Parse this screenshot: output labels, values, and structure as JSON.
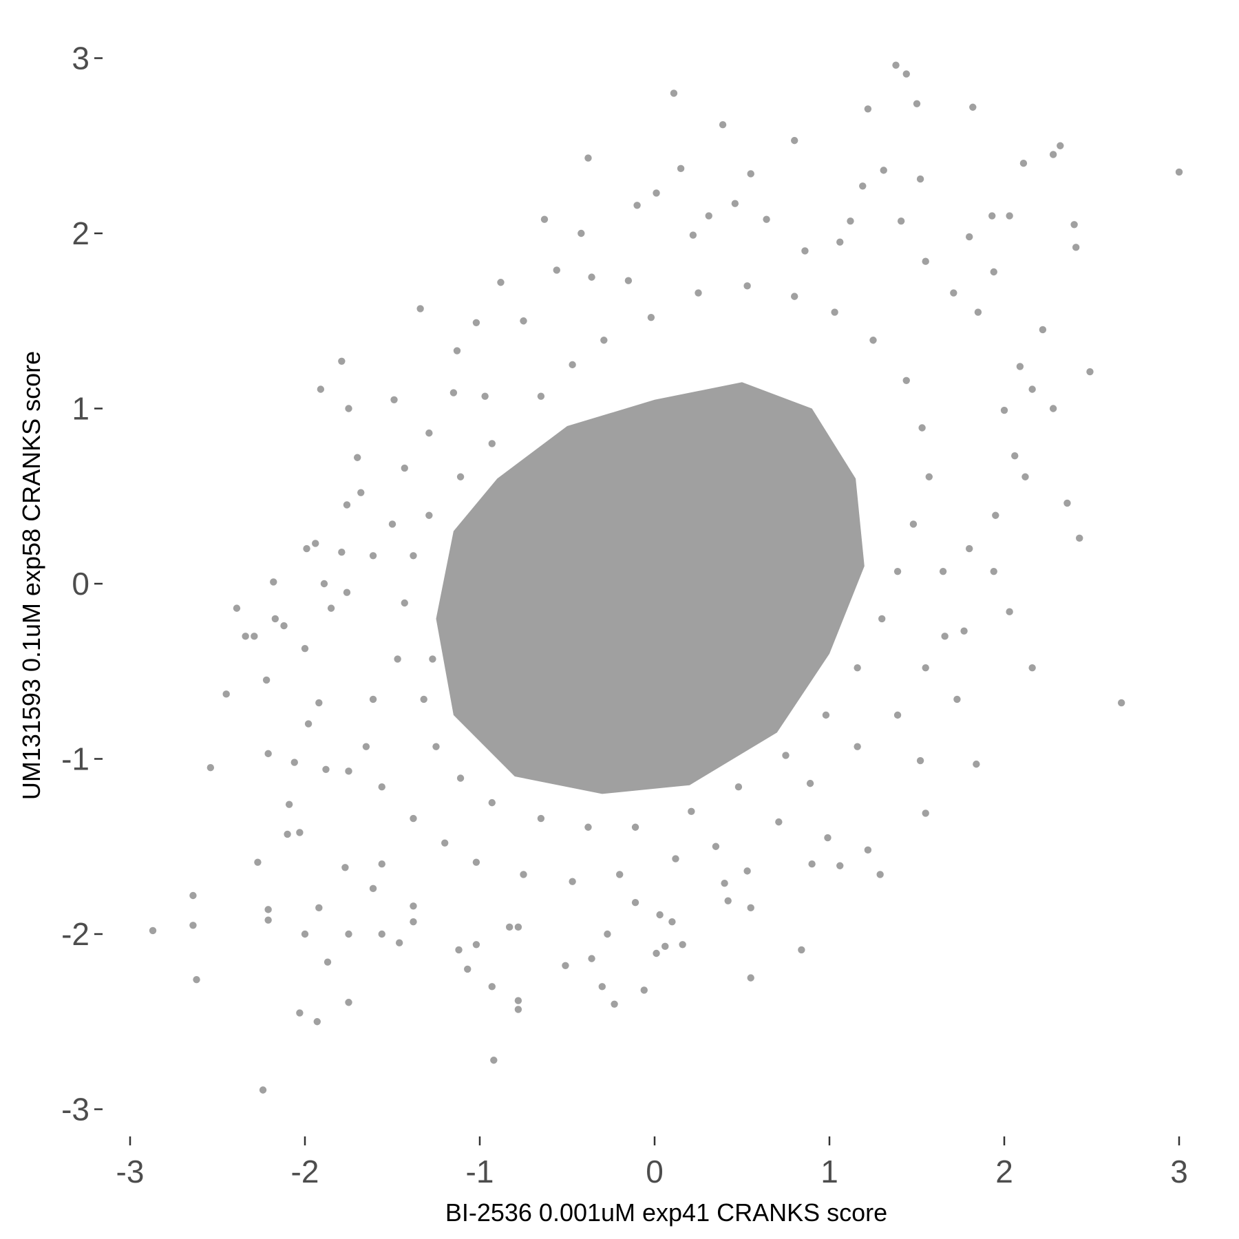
{
  "chart_data": {
    "type": "scatter",
    "title": "",
    "xlabel": "BI-2536 0.001uM exp41 CRANKS score",
    "ylabel": "UM131593 0.1uM exp58 CRANKS score",
    "xlim": [
      -3.05,
      3.05
    ],
    "ylim": [
      -3.1,
      3.1
    ],
    "x_ticks": [
      "-3",
      "-2",
      "-1",
      "0",
      "1",
      "2",
      "3"
    ],
    "y_ticks": [
      "3",
      "2",
      "1",
      "0",
      "-1",
      "-2",
      "-3"
    ],
    "x_tick_values": [
      -3,
      -2,
      -1,
      0,
      1,
      2,
      3
    ],
    "y_tick_values": [
      3,
      2,
      1,
      0,
      -1,
      -2,
      -3
    ],
    "grid": false,
    "legend": "none",
    "point_color": "#a0a0a0",
    "dense_region_outline": [
      [
        -1.25,
        -0.2
      ],
      [
        -1.15,
        0.3
      ],
      [
        -0.9,
        0.6
      ],
      [
        -0.5,
        0.9
      ],
      [
        0,
        1.05
      ],
      [
        0.5,
        1.15
      ],
      [
        0.9,
        1.0
      ],
      [
        1.15,
        0.6
      ],
      [
        1.2,
        0.1
      ],
      [
        1.0,
        -0.4
      ],
      [
        0.7,
        -0.85
      ],
      [
        0.2,
        -1.15
      ],
      [
        -0.3,
        -1.2
      ],
      [
        -0.8,
        -1.1
      ],
      [
        -1.15,
        -0.75
      ]
    ],
    "points": [
      [
        -2.87,
        -1.98
      ],
      [
        -2.64,
        -1.78
      ],
      [
        -2.64,
        -1.95
      ],
      [
        -2.62,
        -2.26
      ],
      [
        -2.54,
        -1.05
      ],
      [
        -2.45,
        -0.63
      ],
      [
        -2.39,
        -0.14
      ],
      [
        -2.34,
        -0.3
      ],
      [
        -2.29,
        -0.3
      ],
      [
        -2.27,
        -1.59
      ],
      [
        -2.24,
        -2.89
      ],
      [
        -2.22,
        -0.55
      ],
      [
        -2.21,
        -0.97
      ],
      [
        -2.21,
        -1.86
      ],
      [
        -2.21,
        -1.92
      ],
      [
        -2.18,
        0.01
      ],
      [
        -2.17,
        -0.2
      ],
      [
        -2.12,
        -0.24
      ],
      [
        -2.1,
        -1.43
      ],
      [
        -2.09,
        -1.26
      ],
      [
        -2.06,
        -1.02
      ],
      [
        -2.03,
        -2.45
      ],
      [
        -2.03,
        -1.42
      ],
      [
        -2.0,
        -2.0
      ],
      [
        -1.99,
        0.2
      ],
      [
        -1.94,
        0.23
      ],
      [
        -1.93,
        -2.5
      ],
      [
        -1.91,
        1.11
      ],
      [
        -1.89,
        0
      ],
      [
        -1.87,
        -2.16
      ],
      [
        -1.79,
        1.27
      ],
      [
        -1.79,
        0.18
      ],
      [
        -1.75,
        -2.39
      ],
      [
        -1.75,
        1.0
      ],
      [
        -1.75,
        -2.0
      ],
      [
        -1.7,
        0.72
      ],
      [
        -1.56,
        -1.6
      ],
      [
        -1.56,
        -2.0
      ],
      [
        -1.46,
        -2.05
      ],
      [
        -1.49,
        1.05
      ],
      [
        -1.34,
        1.57
      ],
      [
        -1.13,
        1.33
      ],
      [
        -1.02,
        1.49
      ],
      [
        -1.12,
        -2.09
      ],
      [
        -1.07,
        -2.2
      ],
      [
        -0.93,
        -2.3
      ],
      [
        -0.92,
        -2.72
      ],
      [
        -0.78,
        -2.38
      ],
      [
        -0.78,
        -2.43
      ],
      [
        -0.88,
        1.72
      ],
      [
        -0.63,
        2.08
      ],
      [
        -0.42,
        2.0
      ],
      [
        -0.38,
        2.43
      ],
      [
        -0.51,
        -2.18
      ],
      [
        -0.36,
        -2.14
      ],
      [
        -0.3,
        -2.3
      ],
      [
        -0.23,
        -2.4
      ],
      [
        -0.06,
        -2.32
      ],
      [
        0.01,
        -2.11
      ],
      [
        0.06,
        -2.07
      ],
      [
        0.16,
        -2.06
      ],
      [
        0.55,
        -2.25
      ],
      [
        0.84,
        -2.09
      ],
      [
        0.11,
        2.8
      ],
      [
        0.15,
        2.37
      ],
      [
        0.39,
        2.62
      ],
      [
        0.55,
        2.34
      ],
      [
        0.8,
        2.53
      ],
      [
        1.22,
        2.71
      ],
      [
        1.38,
        2.96
      ],
      [
        1.44,
        2.91
      ],
      [
        1.5,
        2.74
      ],
      [
        1.82,
        2.72
      ],
      [
        1.31,
        2.36
      ],
      [
        1.52,
        2.31
      ],
      [
        2.11,
        2.4
      ],
      [
        2.32,
        2.5
      ],
      [
        2.28,
        2.45
      ],
      [
        3.0,
        2.35
      ],
      [
        2.49,
        1.21
      ],
      [
        2.43,
        0.26
      ],
      [
        2.16,
        -0.48
      ],
      [
        2.67,
        -0.68
      ],
      [
        1.84,
        -1.03
      ],
      [
        1.55,
        -1.31
      ],
      [
        1.29,
        -1.66
      ],
      [
        1.22,
        -1.52
      ],
      [
        1.52,
        -1.01
      ],
      [
        2.4,
        2.05
      ],
      [
        2.41,
        1.92
      ],
      [
        2.03,
        2.1
      ],
      [
        1.93,
        2.1
      ],
      [
        2.22,
        1.45
      ],
      [
        2.28,
        1.0
      ],
      [
        2.36,
        0.46
      ],
      [
        2.06,
        0.73
      ],
      [
        1.94,
        0.07
      ],
      [
        2.03,
        -0.16
      ],
      [
        1.77,
        -0.27
      ],
      [
        1.73,
        -0.66
      ],
      [
        0.99,
        -1.45
      ],
      [
        1.06,
        -1.61
      ],
      [
        0.9,
        -1.6
      ],
      [
        0.53,
        -1.64
      ],
      [
        0.4,
        -1.71
      ],
      [
        0.42,
        -1.81
      ],
      [
        0.55,
        -1.85
      ],
      [
        0.03,
        -1.89
      ],
      [
        0.1,
        -1.93
      ],
      [
        -0.11,
        -1.82
      ],
      [
        -0.27,
        -2.0
      ],
      [
        -0.83,
        -1.96
      ],
      [
        -0.78,
        -1.96
      ],
      [
        -1.02,
        -2.06
      ],
      [
        -1.38,
        -1.84
      ],
      [
        -1.38,
        -1.93
      ],
      [
        -1.61,
        -1.74
      ],
      [
        -1.77,
        -1.62
      ],
      [
        -1.92,
        -1.85
      ],
      [
        -1.75,
        -1.07
      ],
      [
        -1.88,
        -1.06
      ],
      [
        -2.0,
        -0.37
      ],
      [
        -1.98,
        -0.8
      ],
      [
        -1.92,
        -0.68
      ],
      [
        -1.85,
        -0.14
      ],
      [
        -1.76,
        -0.05
      ],
      [
        -1.76,
        0.45
      ],
      [
        -1.68,
        0.52
      ],
      [
        -1.61,
        0.16
      ],
      [
        -1.5,
        0.34
      ],
      [
        -1.43,
        0.66
      ],
      [
        -1.29,
        0.86
      ],
      [
        -1.15,
        1.09
      ],
      [
        -0.97,
        1.07
      ],
      [
        -0.75,
        1.5
      ],
      [
        -0.56,
        1.79
      ],
      [
        -0.36,
        1.75
      ],
      [
        -0.15,
        1.73
      ],
      [
        -0.1,
        2.16
      ],
      [
        0.01,
        2.23
      ],
      [
        0.22,
        1.99
      ],
      [
        0.31,
        2.1
      ],
      [
        0.46,
        2.17
      ],
      [
        0.64,
        2.08
      ],
      [
        0.86,
        1.9
      ],
      [
        1.06,
        1.95
      ],
      [
        1.12,
        2.07
      ],
      [
        1.19,
        2.27
      ],
      [
        1.41,
        2.07
      ],
      [
        1.55,
        1.84
      ],
      [
        1.8,
        1.98
      ],
      [
        1.94,
        1.78
      ],
      [
        1.71,
        1.66
      ],
      [
        1.85,
        1.55
      ],
      [
        2.09,
        1.24
      ],
      [
        2.0,
        0.99
      ],
      [
        2.16,
        1.11
      ],
      [
        2.12,
        0.61
      ],
      [
        1.95,
        0.39
      ],
      [
        1.8,
        0.2
      ],
      [
        1.65,
        0.07
      ],
      [
        1.66,
        -0.3
      ],
      [
        1.55,
        -0.48
      ],
      [
        1.39,
        -0.75
      ],
      [
        1.16,
        -0.93
      ],
      [
        0.89,
        -1.14
      ],
      [
        0.71,
        -1.36
      ],
      [
        0.35,
        -1.5
      ],
      [
        0.12,
        -1.57
      ],
      [
        -0.2,
        -1.66
      ],
      [
        -0.47,
        -1.7
      ],
      [
        -0.75,
        -1.66
      ],
      [
        -1.02,
        -1.59
      ],
      [
        -1.2,
        -1.48
      ],
      [
        -1.38,
        -1.34
      ],
      [
        -1.56,
        -1.16
      ],
      [
        -1.65,
        -0.93
      ],
      [
        -1.61,
        -0.66
      ],
      [
        -1.47,
        -0.43
      ],
      [
        -1.43,
        -0.11
      ],
      [
        -1.38,
        0.16
      ],
      [
        -1.29,
        0.39
      ],
      [
        -1.11,
        0.61
      ],
      [
        -0.93,
        0.8
      ],
      [
        -0.65,
        1.07
      ],
      [
        -0.47,
        1.25
      ],
      [
        -0.29,
        1.39
      ],
      [
        -0.02,
        1.52
      ],
      [
        0.25,
        1.66
      ],
      [
        0.53,
        1.7
      ],
      [
        0.8,
        1.64
      ],
      [
        1.03,
        1.55
      ],
      [
        1.25,
        1.39
      ],
      [
        1.44,
        1.16
      ],
      [
        1.53,
        0.89
      ],
      [
        1.57,
        0.61
      ],
      [
        1.48,
        0.34
      ],
      [
        1.39,
        0.07
      ],
      [
        1.3,
        -0.2
      ],
      [
        1.16,
        -0.48
      ],
      [
        0.98,
        -0.75
      ],
      [
        0.75,
        -0.98
      ],
      [
        0.48,
        -1.16
      ],
      [
        0.21,
        -1.3
      ],
      [
        -0.11,
        -1.39
      ],
      [
        -0.38,
        -1.39
      ],
      [
        -0.65,
        -1.34
      ],
      [
        -0.93,
        -1.25
      ],
      [
        -1.11,
        -1.11
      ],
      [
        -1.25,
        -0.93
      ],
      [
        -1.32,
        -0.66
      ],
      [
        -1.27,
        -0.43
      ]
    ]
  }
}
